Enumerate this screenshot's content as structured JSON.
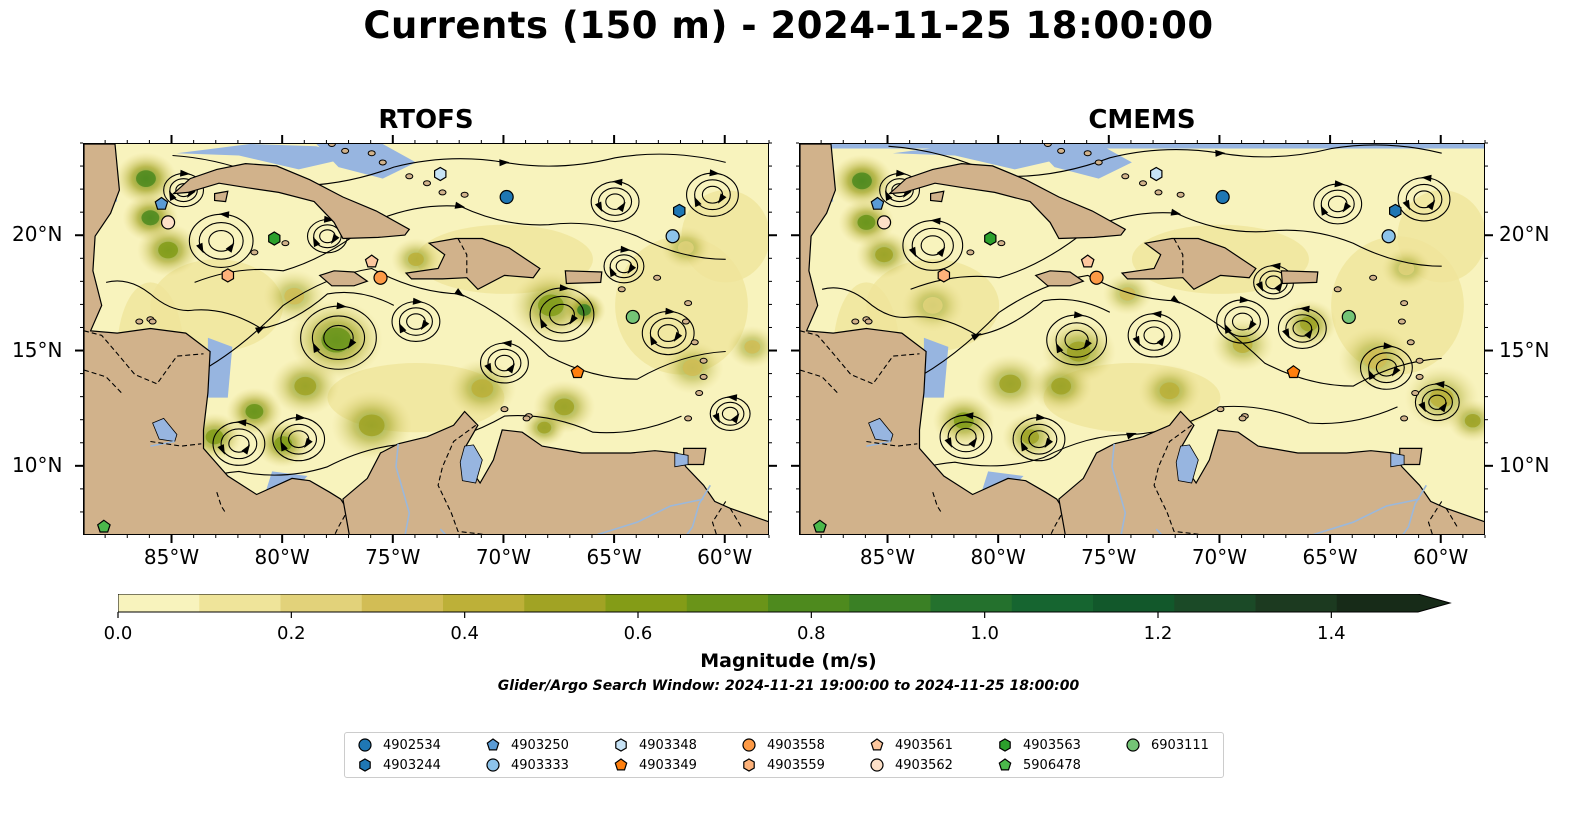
{
  "figure": {
    "title": "Currents (150 m) - 2024-11-25 18:00:00"
  },
  "panels": [
    {
      "title": "RTOFS",
      "source": "RTOFS"
    },
    {
      "title": "CMEMS",
      "source": "CMEMS"
    }
  ],
  "axes": {
    "x_ticks": [
      "85°W",
      "80°W",
      "75°W",
      "70°W",
      "65°W",
      "60°W"
    ],
    "y_ticks": [
      "20°N",
      "15°N",
      "10°N"
    ],
    "lon_range": [
      -89,
      -58
    ],
    "lat_range": [
      7,
      24
    ]
  },
  "colorbar": {
    "label": "Magnitude (m/s)",
    "ticks": [
      "0.0",
      "0.2",
      "0.4",
      "0.6",
      "0.8",
      "1.0",
      "1.2",
      "1.4"
    ],
    "min": 0.0,
    "max": 1.5,
    "extend": "max",
    "colors": [
      "#f8f3bd",
      "#efe49a",
      "#e2d27a",
      "#d2bd55",
      "#bdb038",
      "#a1a324",
      "#849c17",
      "#6a9419",
      "#4e8a1e",
      "#3a8025",
      "#24712d",
      "#166530",
      "#12582b",
      "#1b4a27",
      "#1c3a20",
      "#172b18"
    ]
  },
  "search_window": "Glider/Argo Search Window: 2024-11-21 19:00:00 to 2024-11-25 18:00:00",
  "legend": {
    "items": [
      {
        "id": "4902534",
        "marker": "circle",
        "color": "#1f77b4"
      },
      {
        "id": "4903244",
        "marker": "hexagon",
        "color": "#1f77b4"
      },
      {
        "id": "4903250",
        "marker": "pentagon",
        "color": "#5a9bd5"
      },
      {
        "id": "4903333",
        "marker": "circle",
        "color": "#8dc3ea"
      },
      {
        "id": "4903348",
        "marker": "hexagon",
        "color": "#c7e3f6"
      },
      {
        "id": "4903349",
        "marker": "pentagon",
        "color": "#ff7f0e"
      },
      {
        "id": "4903558",
        "marker": "circle",
        "color": "#fd9a46"
      },
      {
        "id": "4903559",
        "marker": "hexagon",
        "color": "#fdb27a"
      },
      {
        "id": "4903561",
        "marker": "pentagon",
        "color": "#fdc79e"
      },
      {
        "id": "4903562",
        "marker": "circle",
        "color": "#fde0c8"
      },
      {
        "id": "4903563",
        "marker": "hexagon",
        "color": "#2ca02c"
      },
      {
        "id": "5906478",
        "marker": "pentagon",
        "color": "#4bb84b"
      },
      {
        "id": "6903111",
        "marker": "circle",
        "color": "#74c476"
      }
    ]
  },
  "platform_positions": [
    {
      "id": "4902534",
      "lon": -69.9,
      "lat": 21.7
    },
    {
      "id": "4903244",
      "lon": -62.1,
      "lat": 21.1
    },
    {
      "id": "4903250",
      "lon": -85.5,
      "lat": 21.4
    },
    {
      "id": "4903333",
      "lon": -62.4,
      "lat": 20.0
    },
    {
      "id": "4903348",
      "lon": -72.9,
      "lat": 22.7
    },
    {
      "id": "4903349",
      "lon": -66.7,
      "lat": 14.1
    },
    {
      "id": "4903558",
      "lon": -75.6,
      "lat": 18.2
    },
    {
      "id": "4903559",
      "lon": -82.5,
      "lat": 18.3
    },
    {
      "id": "4903561",
      "lon": -76.0,
      "lat": 18.9
    },
    {
      "id": "4903562",
      "lon": -85.2,
      "lat": 20.6
    },
    {
      "id": "4903563",
      "lon": -80.4,
      "lat": 19.9
    },
    {
      "id": "5906478",
      "lon": -88.1,
      "lat": 7.4
    },
    {
      "id": "6903111",
      "lon": -64.2,
      "lat": 16.5
    }
  ],
  "colors": {
    "land": "#d1b28b",
    "ocean_fill": "#97b5e0",
    "river": "#9bb8db"
  }
}
